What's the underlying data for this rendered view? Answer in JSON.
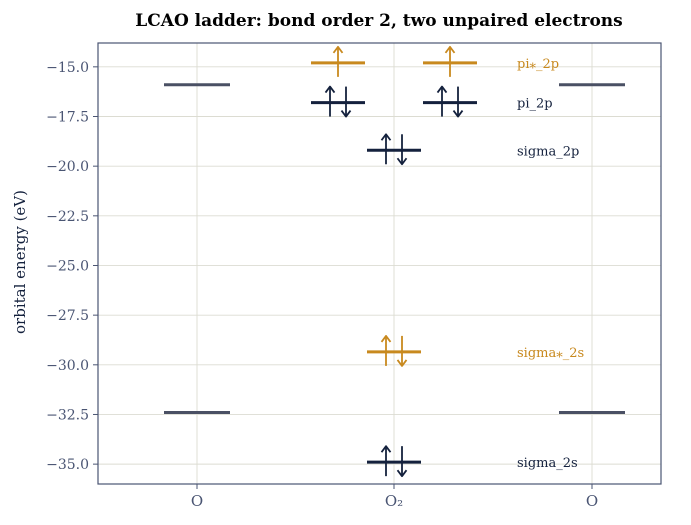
{
  "chart_data": {
    "type": "mo-diagram",
    "title": "LCAO ladder: bond order 2, two unpaired electrons",
    "ylabel": "orbital energy (eV)",
    "xlabel": "",
    "ylim": [
      -36.0,
      -13.8
    ],
    "yticks": [
      -15.0,
      -17.5,
      -20.0,
      -22.5,
      -25.0,
      -27.5,
      -30.0,
      -32.5,
      -35.0
    ],
    "ytick_labels": [
      "−15.0",
      "−17.5",
      "−20.0",
      "−22.5",
      "−25.0",
      "−27.5",
      "−30.0",
      "−32.5",
      "−35.0"
    ],
    "categories": [
      "O",
      "O₂",
      "O"
    ],
    "grid": true,
    "colors": {
      "bonding": "#14213d",
      "antibonding": "#c8891e",
      "atomic": "#4a5064",
      "axis": "#4a5573",
      "grid": "#dcdcd2"
    },
    "atomic_levels": [
      {
        "column": 0,
        "energy": -15.9
      },
      {
        "column": 0,
        "energy": -32.4
      },
      {
        "column": 2,
        "energy": -15.9
      },
      {
        "column": 2,
        "energy": -32.4
      }
    ],
    "mo_levels": [
      {
        "name": "sigma_2s",
        "energy": -34.9,
        "kind": "bonding",
        "degeneracy": 1,
        "electrons": [
          2
        ]
      },
      {
        "name": "sigma⁎_2s",
        "energy": -29.35,
        "kind": "antibonding",
        "degeneracy": 1,
        "electrons": [
          2
        ]
      },
      {
        "name": "sigma_2p",
        "energy": -19.2,
        "kind": "bonding",
        "degeneracy": 1,
        "electrons": [
          2
        ]
      },
      {
        "name": "pi_2p",
        "energy": -16.8,
        "kind": "bonding",
        "degeneracy": 2,
        "electrons": [
          2,
          2
        ]
      },
      {
        "name": "pi⁎_2p",
        "energy": -14.8,
        "kind": "antibonding",
        "degeneracy": 2,
        "electrons": [
          1,
          1
        ]
      }
    ]
  }
}
